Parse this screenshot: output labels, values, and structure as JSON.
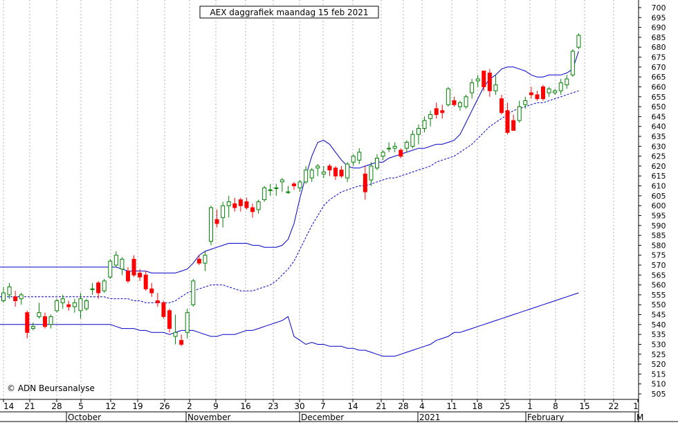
{
  "chart_data": {
    "type": "candlestick",
    "title": "AEX daggrafiek maandag 15 feb 2021",
    "copyright": "© ADN Beursanalyse",
    "y_axis": {
      "min": 505,
      "max": 700,
      "step": 5,
      "side": "right",
      "ticks": [
        505,
        510,
        515,
        520,
        525,
        530,
        535,
        540,
        545,
        550,
        555,
        560,
        565,
        570,
        575,
        580,
        585,
        590,
        595,
        600,
        605,
        610,
        615,
        620,
        625,
        630,
        635,
        640,
        645,
        650,
        655,
        660,
        665,
        670,
        675,
        680,
        685,
        690,
        695,
        700
      ]
    },
    "x_axis": {
      "day_ticks": [
        "14",
        "21",
        "28",
        "5",
        "12",
        "19",
        "26",
        "2",
        "9",
        "16",
        "23",
        "30",
        "7",
        "14",
        "21",
        "28",
        "4",
        "11",
        "18",
        "25",
        "1",
        "8",
        "15",
        "22",
        "1"
      ],
      "month_labels": [
        "October",
        "November",
        "December",
        "2021",
        "February",
        "M"
      ]
    },
    "grid": "vertical dotted at each day tick",
    "colors": {
      "up": "#008000",
      "up_fill": "#ffffff",
      "down": "#ff0000",
      "bands": "#0000cc",
      "frame": "#000000"
    },
    "candles": [
      {
        "o": 552,
        "h": 559,
        "l": 551,
        "c": 556
      },
      {
        "o": 555,
        "h": 561,
        "l": 553,
        "c": 559
      },
      {
        "o": 554,
        "h": 557,
        "l": 549,
        "c": 552
      },
      {
        "o": 553,
        "h": 556,
        "l": 550,
        "c": 555
      },
      {
        "o": 546,
        "h": 547,
        "l": 533,
        "c": 536
      },
      {
        "o": 538,
        "h": 541,
        "l": 537,
        "c": 539
      },
      {
        "o": 544,
        "h": 551,
        "l": 543,
        "c": 546
      },
      {
        "o": 544,
        "h": 546,
        "l": 538,
        "c": 539
      },
      {
        "o": 540,
        "h": 545,
        "l": 538,
        "c": 544
      },
      {
        "o": 547,
        "h": 553,
        "l": 546,
        "c": 552
      },
      {
        "o": 551,
        "h": 555,
        "l": 548,
        "c": 553
      },
      {
        "o": 550,
        "h": 552,
        "l": 547,
        "c": 549
      },
      {
        "o": 549,
        "h": 553,
        "l": 546,
        "c": 551
      },
      {
        "o": 547,
        "h": 556,
        "l": 543,
        "c": 553
      },
      {
        "o": 548,
        "h": 553,
        "l": 547,
        "c": 552
      },
      {
        "o": 558,
        "h": 561,
        "l": 555,
        "c": 558
      },
      {
        "o": 561,
        "h": 562,
        "l": 553,
        "c": 556
      },
      {
        "o": 557,
        "h": 563,
        "l": 556,
        "c": 562
      },
      {
        "o": 564,
        "h": 573,
        "l": 563,
        "c": 572
      },
      {
        "o": 570,
        "h": 577,
        "l": 569,
        "c": 575
      },
      {
        "o": 568,
        "h": 574,
        "l": 565,
        "c": 573
      },
      {
        "o": 567,
        "h": 569,
        "l": 561,
        "c": 562
      },
      {
        "o": 573,
        "h": 575,
        "l": 564,
        "c": 565
      },
      {
        "o": 566,
        "h": 568,
        "l": 562,
        "c": 564
      },
      {
        "o": 565,
        "h": 567,
        "l": 557,
        "c": 558
      },
      {
        "o": 558,
        "h": 561,
        "l": 554,
        "c": 556
      },
      {
        "o": 552,
        "h": 556,
        "l": 549,
        "c": 551
      },
      {
        "o": 551,
        "h": 552,
        "l": 543,
        "c": 544
      },
      {
        "o": 547,
        "h": 548,
        "l": 536,
        "c": 538
      },
      {
        "o": 534,
        "h": 545,
        "l": 530,
        "c": 536
      },
      {
        "o": 532,
        "h": 535,
        "l": 529,
        "c": 530
      },
      {
        "o": 536,
        "h": 548,
        "l": 533,
        "c": 546
      },
      {
        "o": 550,
        "h": 563,
        "l": 549,
        "c": 562
      },
      {
        "o": 573,
        "h": 575,
        "l": 570,
        "c": 571
      },
      {
        "o": 571,
        "h": 577,
        "l": 567,
        "c": 575
      },
      {
        "o": 582,
        "h": 600,
        "l": 580,
        "c": 599
      },
      {
        "o": 593,
        "h": 598,
        "l": 589,
        "c": 591
      },
      {
        "o": 594,
        "h": 602,
        "l": 589,
        "c": 600
      },
      {
        "o": 600,
        "h": 605,
        "l": 594,
        "c": 602
      },
      {
        "o": 601,
        "h": 604,
        "l": 597,
        "c": 599
      },
      {
        "o": 603,
        "h": 604,
        "l": 597,
        "c": 600
      },
      {
        "o": 602,
        "h": 604,
        "l": 598,
        "c": 599
      },
      {
        "o": 599,
        "h": 601,
        "l": 594,
        "c": 597
      },
      {
        "o": 598,
        "h": 603,
        "l": 596,
        "c": 602
      },
      {
        "o": 603,
        "h": 610,
        "l": 602,
        "c": 609
      },
      {
        "o": 608,
        "h": 611,
        "l": 605,
        "c": 608
      },
      {
        "o": 609,
        "h": 611,
        "l": 605,
        "c": 609
      },
      {
        "o": 612,
        "h": 614,
        "l": 607,
        "c": 613
      },
      {
        "o": 607,
        "h": 610,
        "l": 606,
        "c": 607
      },
      {
        "o": 611,
        "h": 612,
        "l": 608,
        "c": 610
      },
      {
        "o": 609,
        "h": 613,
        "l": 607,
        "c": 612
      },
      {
        "o": 612,
        "h": 620,
        "l": 611,
        "c": 618
      },
      {
        "o": 614,
        "h": 619,
        "l": 612,
        "c": 618
      },
      {
        "o": 619,
        "h": 621,
        "l": 615,
        "c": 620
      },
      {
        "o": 616,
        "h": 620,
        "l": 614,
        "c": 617
      },
      {
        "o": 620,
        "h": 621,
        "l": 615,
        "c": 618
      },
      {
        "o": 619,
        "h": 620,
        "l": 613,
        "c": 615
      },
      {
        "o": 618,
        "h": 620,
        "l": 614,
        "c": 615
      },
      {
        "o": 614,
        "h": 622,
        "l": 612,
        "c": 621
      },
      {
        "o": 622,
        "h": 626,
        "l": 620,
        "c": 625
      },
      {
        "o": 623,
        "h": 629,
        "l": 621,
        "c": 627
      },
      {
        "o": 616,
        "h": 620,
        "l": 603,
        "c": 607
      },
      {
        "o": 613,
        "h": 622,
        "l": 610,
        "c": 620
      },
      {
        "o": 619,
        "h": 626,
        "l": 618,
        "c": 624
      },
      {
        "o": 625,
        "h": 628,
        "l": 623,
        "c": 627
      },
      {
        "o": 629,
        "h": 632,
        "l": 627,
        "c": 629
      },
      {
        "o": 629,
        "h": 632,
        "l": 627,
        "c": 630
      },
      {
        "o": 628,
        "h": 629,
        "l": 624,
        "c": 625
      },
      {
        "o": 629,
        "h": 633,
        "l": 627,
        "c": 632
      },
      {
        "o": 630,
        "h": 638,
        "l": 629,
        "c": 636
      },
      {
        "o": 636,
        "h": 641,
        "l": 631,
        "c": 639
      },
      {
        "o": 639,
        "h": 645,
        "l": 637,
        "c": 643
      },
      {
        "o": 644,
        "h": 648,
        "l": 640,
        "c": 646
      },
      {
        "o": 649,
        "h": 652,
        "l": 644,
        "c": 646
      },
      {
        "o": 648,
        "h": 651,
        "l": 644,
        "c": 647
      },
      {
        "o": 651,
        "h": 660,
        "l": 650,
        "c": 659
      },
      {
        "o": 653,
        "h": 655,
        "l": 650,
        "c": 651
      },
      {
        "o": 650,
        "h": 653,
        "l": 648,
        "c": 652
      },
      {
        "o": 650,
        "h": 656,
        "l": 649,
        "c": 655
      },
      {
        "o": 657,
        "h": 664,
        "l": 654,
        "c": 662
      },
      {
        "o": 663,
        "h": 666,
        "l": 660,
        "c": 664
      },
      {
        "o": 668,
        "h": 668,
        "l": 658,
        "c": 660
      },
      {
        "o": 667,
        "h": 669,
        "l": 655,
        "c": 658
      },
      {
        "o": 658,
        "h": 666,
        "l": 656,
        "c": 661
      },
      {
        "o": 654,
        "h": 656,
        "l": 646,
        "c": 647
      },
      {
        "o": 648,
        "h": 652,
        "l": 636,
        "c": 637
      },
      {
        "o": 643,
        "h": 646,
        "l": 638,
        "c": 638
      },
      {
        "o": 643,
        "h": 653,
        "l": 642,
        "c": 650
      },
      {
        "o": 651,
        "h": 655,
        "l": 649,
        "c": 653
      },
      {
        "o": 657,
        "h": 660,
        "l": 654,
        "c": 656
      },
      {
        "o": 656,
        "h": 658,
        "l": 653,
        "c": 654
      },
      {
        "o": 660,
        "h": 661,
        "l": 653,
        "c": 654
      },
      {
        "o": 657,
        "h": 660,
        "l": 655,
        "c": 659
      },
      {
        "o": 657,
        "h": 659,
        "l": 656,
        "c": 658
      },
      {
        "o": 658,
        "h": 664,
        "l": 656,
        "c": 662
      },
      {
        "o": 661,
        "h": 666,
        "l": 659,
        "c": 664
      },
      {
        "o": 666,
        "h": 679,
        "l": 665,
        "c": 678
      },
      {
        "o": 680,
        "h": 687,
        "l": 679,
        "c": 686
      }
    ],
    "bollinger": {
      "upper": [
        569,
        569,
        569,
        569,
        568,
        567,
        567,
        567,
        567,
        566,
        566,
        566,
        566,
        566,
        567,
        568,
        571,
        575,
        577,
        578,
        579,
        580,
        581,
        581,
        581,
        581,
        580,
        580,
        579,
        579,
        579,
        580,
        583,
        591,
        604,
        615,
        625,
        632,
        633,
        631,
        627,
        623,
        620,
        619,
        619,
        620,
        621,
        622,
        622,
        624,
        625,
        626,
        627,
        628,
        629,
        629,
        630,
        631,
        631,
        632,
        633,
        636,
        642,
        648,
        654,
        660,
        664,
        666,
        669,
        670,
        670,
        669,
        668,
        666,
        665,
        665,
        666,
        666,
        666,
        667,
        669,
        678
      ],
      "middle": [
        554,
        554,
        553,
        553,
        553,
        553,
        552,
        552,
        551,
        551,
        551,
        551,
        551,
        552,
        554,
        556,
        557,
        558,
        559,
        560,
        560,
        560,
        559,
        558,
        557,
        557,
        557,
        558,
        559,
        560,
        562,
        565,
        568,
        572,
        578,
        584,
        590,
        595,
        600,
        603,
        605,
        607,
        608,
        609,
        610,
        610,
        611,
        612,
        613,
        614,
        614,
        615,
        616,
        617,
        618,
        619,
        620,
        622,
        623,
        624,
        625,
        627,
        629,
        631,
        634,
        637,
        640,
        642,
        644,
        646,
        648,
        649,
        650,
        651,
        652,
        652,
        653,
        654,
        655,
        656,
        657,
        658
      ],
      "lower": [
        540,
        540,
        540,
        539,
        538,
        538,
        538,
        537,
        537,
        536,
        536,
        536,
        535,
        536,
        537,
        537,
        537,
        536,
        535,
        534,
        534,
        535,
        535,
        535,
        536,
        537,
        537,
        538,
        539,
        540,
        541,
        542,
        544,
        534,
        532,
        530,
        531,
        530,
        530,
        529,
        529,
        529,
        528,
        528,
        527,
        527,
        526,
        525,
        524,
        524,
        524,
        525,
        526,
        527,
        528,
        529,
        530,
        532,
        533,
        534,
        536,
        536,
        537,
        538,
        539,
        540,
        541,
        542,
        543,
        544,
        545,
        546,
        547,
        548,
        549,
        550,
        551,
        552,
        553,
        554,
        555,
        556
      ]
    }
  }
}
